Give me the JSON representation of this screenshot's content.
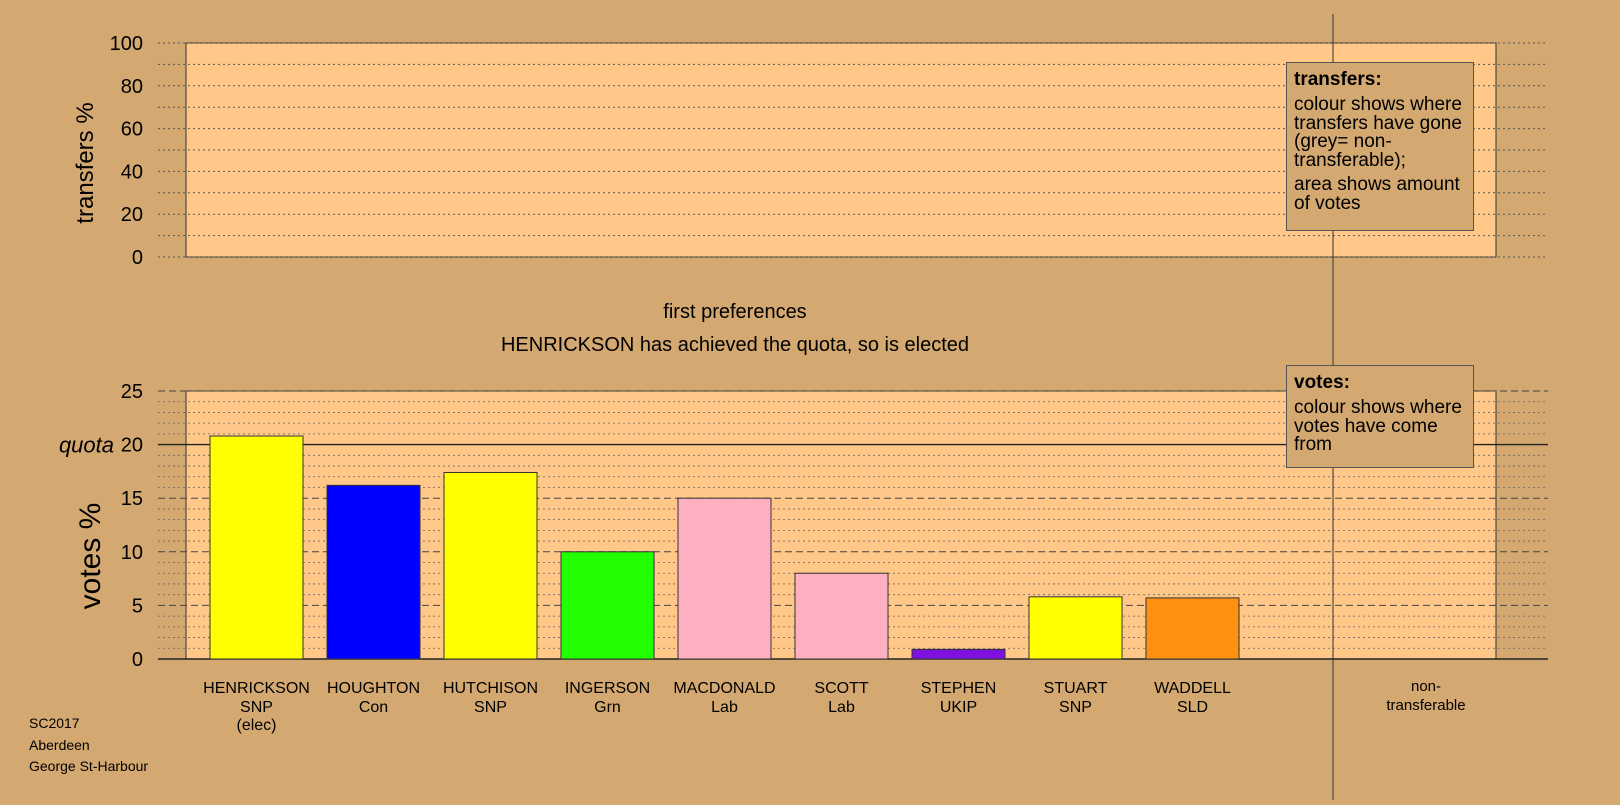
{
  "chart_data": [
    {
      "type": "bar",
      "name": "transfers",
      "ylabel": "transfers %",
      "ylim": [
        0,
        100
      ],
      "yticks": [
        0,
        20,
        40,
        60,
        80,
        100
      ],
      "categories": [],
      "values": []
    },
    {
      "type": "bar",
      "name": "votes",
      "title": "first preferences",
      "subtitle": "HENRICKSON has achieved the quota, so is elected",
      "ylabel": "votes %",
      "ylim": [
        0,
        25
      ],
      "yticks": [
        0,
        5,
        10,
        15,
        20,
        25
      ],
      "quota": 20,
      "quota_label": "quota",
      "categories": [
        "HENRICKSON",
        "HOUGHTON",
        "HUTCHISON",
        "INGERSON",
        "MACDONALD",
        "SCOTT",
        "STEPHEN",
        "STUART",
        "WADDELL"
      ],
      "parties": [
        "SNP",
        "Con",
        "SNP",
        "Grn",
        "Lab",
        "Lab",
        "UKIP",
        "SNP",
        "SLD"
      ],
      "notes": [
        "(elec)",
        "",
        "",
        "",
        "",
        "",
        "",
        "",
        ""
      ],
      "values": [
        20.8,
        16.2,
        17.4,
        10.0,
        15.0,
        8.0,
        0.9,
        5.8,
        5.7
      ],
      "colors": [
        "#ffff00",
        "#0000ff",
        "#ffff00",
        "#22ff00",
        "#ffb0c0",
        "#ffb0c0",
        "#8010dd",
        "#ffff00",
        "#ff9010"
      ],
      "nontransferable_label": "non-\ntransferable"
    }
  ],
  "legend_transfers": {
    "title": "transfers:",
    "line1": "colour shows where transfers have gone (grey= non-transferable);",
    "line2": "area shows amount of votes"
  },
  "legend_votes": {
    "title": "votes:",
    "line1": "colour shows where votes have come from"
  },
  "footer": {
    "line1": "SC2017",
    "line2": "Aberdeen",
    "line3": "George St-Harbour"
  },
  "colors": {
    "background": "#d4a871",
    "plot_area": "#ffc888"
  }
}
